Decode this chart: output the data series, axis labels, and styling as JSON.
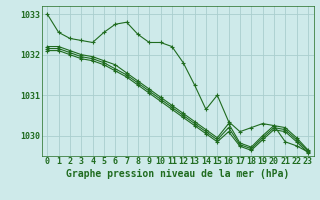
{
  "background_color": "#ceeaea",
  "grid_color": "#aacece",
  "line_color": "#1f6b1f",
  "xlabel": "Graphe pression niveau de la mer (hPa)",
  "hours": [
    0,
    1,
    2,
    3,
    4,
    5,
    6,
    7,
    8,
    9,
    10,
    11,
    12,
    13,
    14,
    15,
    16,
    17,
    18,
    19,
    20,
    21,
    22,
    23
  ],
  "series": [
    [
      1033.0,
      1032.55,
      1032.4,
      1032.35,
      1032.3,
      1032.55,
      1032.75,
      1032.8,
      1032.5,
      1032.3,
      1032.3,
      1032.2,
      1031.8,
      1031.25,
      1030.65,
      1031.0,
      1030.35,
      1030.1,
      1030.2,
      1030.3,
      1030.25,
      1029.85,
      1029.75,
      1029.6
    ],
    [
      1032.2,
      1032.2,
      1032.1,
      1032.0,
      1031.95,
      1031.85,
      1031.75,
      1031.55,
      1031.35,
      1031.15,
      1030.95,
      1030.75,
      1030.55,
      1030.35,
      1030.15,
      1029.95,
      1030.3,
      1029.82,
      1029.72,
      1030.0,
      1030.25,
      1030.2,
      1029.95,
      1029.65
    ],
    [
      1032.15,
      1032.15,
      1032.05,
      1031.95,
      1031.9,
      1031.8,
      1031.65,
      1031.5,
      1031.3,
      1031.1,
      1030.9,
      1030.7,
      1030.5,
      1030.3,
      1030.1,
      1029.9,
      1030.2,
      1029.78,
      1029.68,
      1029.95,
      1030.2,
      1030.15,
      1029.9,
      1029.62
    ],
    [
      1032.1,
      1032.1,
      1032.0,
      1031.9,
      1031.85,
      1031.75,
      1031.6,
      1031.45,
      1031.25,
      1031.05,
      1030.85,
      1030.65,
      1030.45,
      1030.25,
      1030.05,
      1029.85,
      1030.1,
      1029.74,
      1029.64,
      1029.9,
      1030.15,
      1030.1,
      1029.85,
      1029.58
    ]
  ],
  "ylim_min": 1029.5,
  "ylim_max": 1033.2,
  "yticks": [
    1030,
    1031,
    1032,
    1033
  ],
  "xticks": [
    0,
    1,
    2,
    3,
    4,
    5,
    6,
    7,
    8,
    9,
    10,
    11,
    12,
    13,
    14,
    15,
    16,
    17,
    18,
    19,
    20,
    21,
    22,
    23
  ],
  "tick_fontsize": 6,
  "label_fontsize": 7,
  "line_width": 0.8,
  "marker_size": 2.5
}
